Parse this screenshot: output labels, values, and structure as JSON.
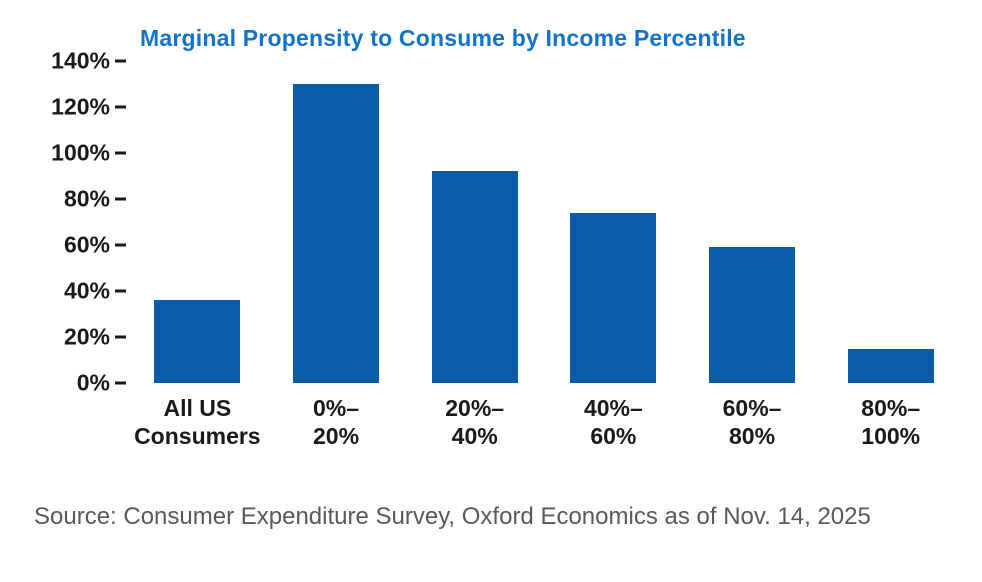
{
  "chart": {
    "title": "Marginal Propensity to Consume by Income Percentile",
    "source": "Source: Consumer Expenditure Survey, Oxford Economics as of Nov. 14, 2025",
    "colors": {
      "bar": "#0d5ca9",
      "title": "#1173c9",
      "axis_text": "#1a1a1a",
      "source_text": "#58595b"
    }
  },
  "chart_data": {
    "type": "bar",
    "title": "Marginal Propensity to Consume by Income Percentile",
    "categories": [
      "All US Consumers",
      "0%–20%",
      "20%–40%",
      "40%–60%",
      "60%–80%",
      "80%–100%"
    ],
    "category_label_lines": [
      [
        "All US",
        "Consumers"
      ],
      [
        "0%–",
        "20%"
      ],
      [
        "20%–",
        "40%"
      ],
      [
        "40%–",
        "60%"
      ],
      [
        "60%–",
        "80%"
      ],
      [
        "80%–",
        "100%"
      ]
    ],
    "values": [
      36,
      130,
      92,
      74,
      59,
      15
    ],
    "unit": "%",
    "xlabel": "",
    "ylabel": "",
    "ylim": [
      0,
      140
    ],
    "yticks": [
      0,
      20,
      40,
      60,
      80,
      100,
      120,
      140
    ],
    "ytick_labels": [
      "0%",
      "20%",
      "40%",
      "60%",
      "80%",
      "100%",
      "120%",
      "140%"
    ],
    "grid": false,
    "legend": false,
    "source": "Source: Consumer Expenditure Survey, Oxford Economics as of Nov. 14, 2025"
  }
}
